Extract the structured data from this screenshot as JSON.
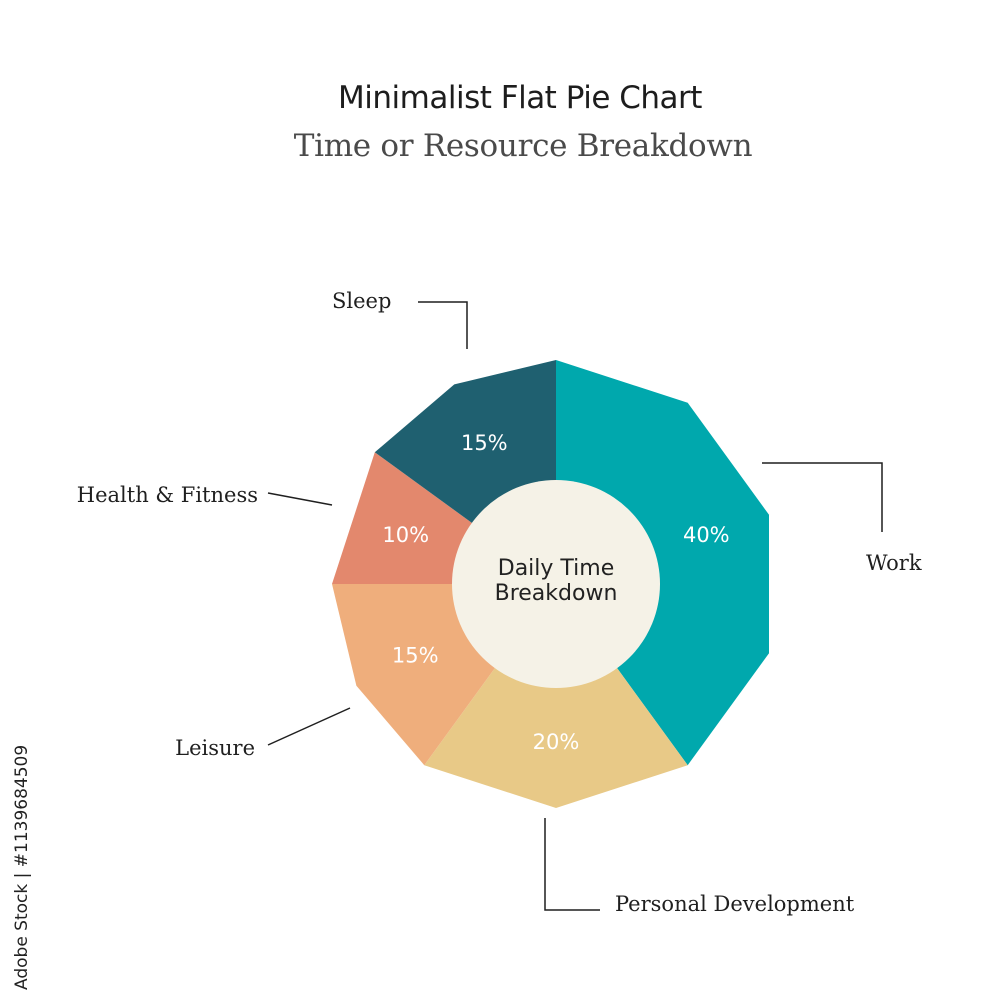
{
  "stock_id": "Adobe Stock | #1139684509",
  "chart_data": {
    "type": "pie",
    "title": "Minimalist Flat Pie Chart",
    "subtitle": "Time or Resource Breakdown",
    "center_label": [
      "Daily Time",
      "Breakdown"
    ],
    "unit": "%",
    "slices": [
      {
        "name": "Work",
        "value": 40,
        "label": "40%",
        "color": "#00a8ad"
      },
      {
        "name": "Personal Development",
        "value": 20,
        "label": "20%",
        "color": "#e8c987"
      },
      {
        "name": "Leisure",
        "value": 15,
        "label": "15%",
        "color": "#efae7c"
      },
      {
        "name": "Health & Fitness",
        "value": 10,
        "label": "10%",
        "color": "#e3886d"
      },
      {
        "name": "Sleep",
        "value": 15,
        "label": "15%",
        "color": "#1f6070"
      }
    ],
    "colors": {
      "center_fill": "#f5f2e7",
      "line": "#1f1f1f"
    }
  }
}
